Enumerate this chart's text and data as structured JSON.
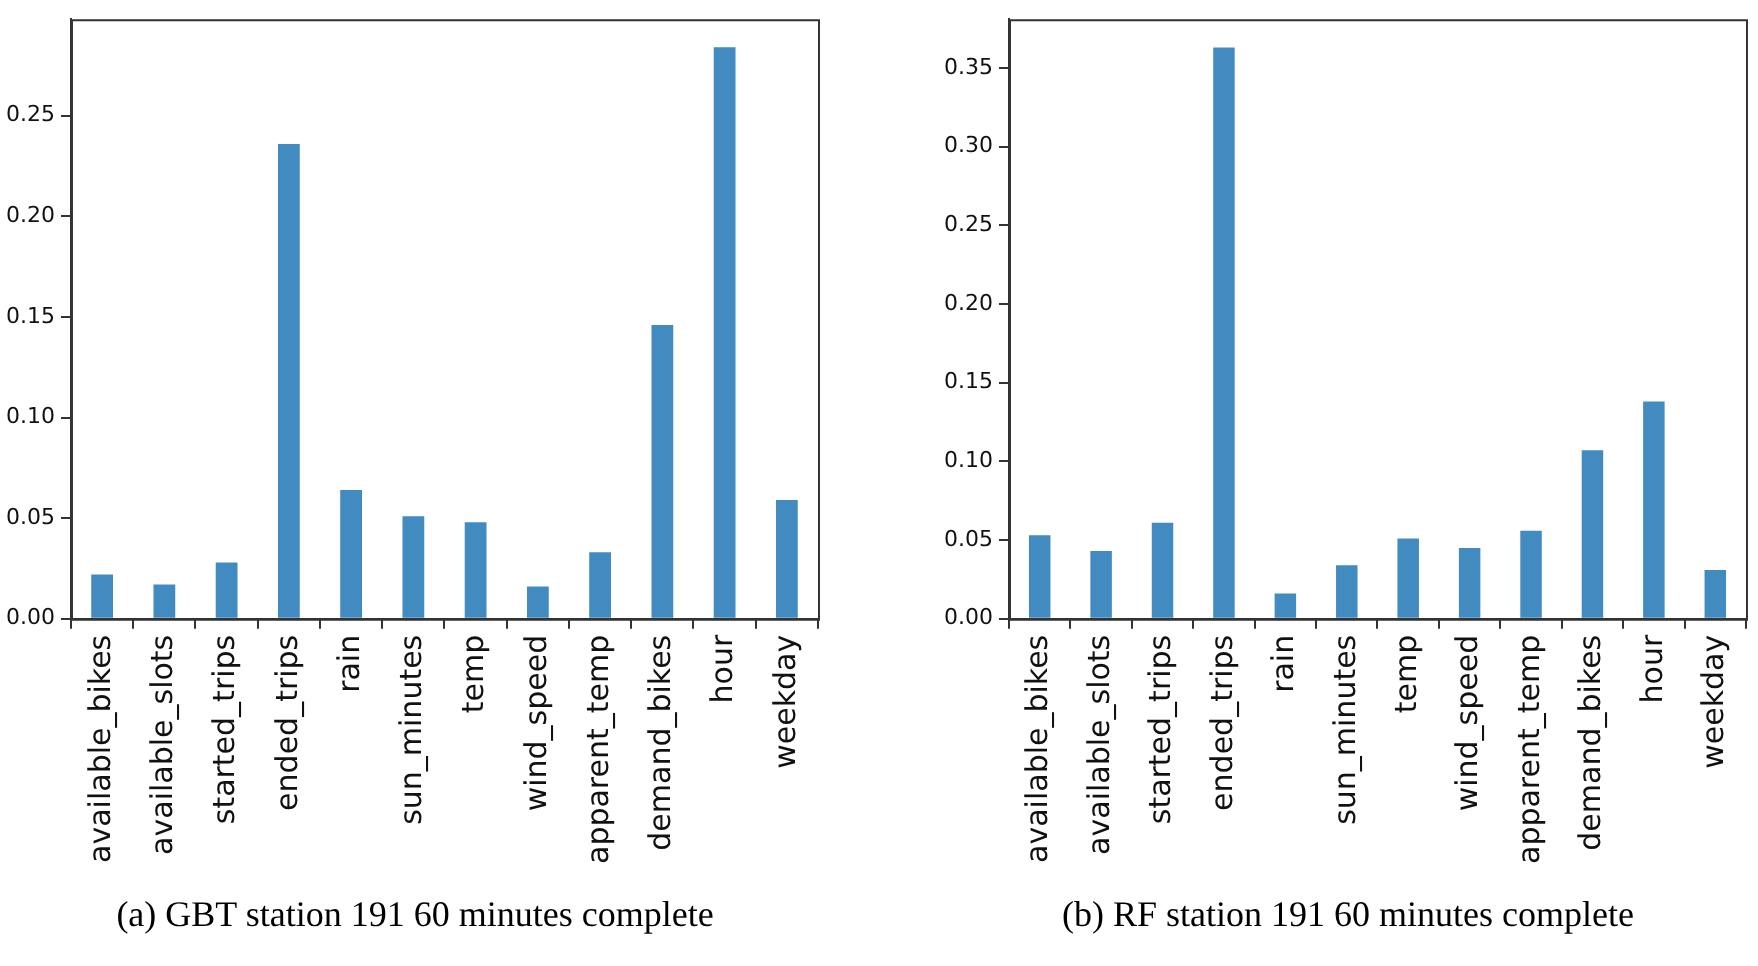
{
  "chart_data": [
    {
      "type": "bar",
      "categories": [
        "available_bikes",
        "available_slots",
        "started_trips",
        "ended_trips",
        "rain",
        "sun_minutes",
        "temp",
        "wind_speed",
        "apparent_temp",
        "demand_bikes",
        "hour",
        "weekday"
      ],
      "values": [
        0.022,
        0.017,
        0.028,
        0.236,
        0.064,
        0.051,
        0.048,
        0.016,
        0.033,
        0.146,
        0.284,
        0.059
      ],
      "color": "#428bc1",
      "ylim": [
        0,
        0.298
      ],
      "yticks": [
        {
          "value": 0,
          "label": "0.00"
        },
        {
          "value": 0.05,
          "label": "0.05"
        },
        {
          "value": 0.1,
          "label": "0.10"
        },
        {
          "value": 0.15,
          "label": "0.15"
        },
        {
          "value": 0.2,
          "label": "0.20"
        },
        {
          "value": 0.25,
          "label": "0.25"
        }
      ],
      "grid": false,
      "legend": false,
      "annotations": [
        "(a) GBT station 191 60 minutes complete"
      ]
    },
    {
      "type": "bar",
      "categories": [
        "available_bikes",
        "available_slots",
        "started_trips",
        "ended_trips",
        "rain",
        "sun_minutes",
        "temp",
        "wind_speed",
        "apparent_temp",
        "demand_bikes",
        "hour",
        "weekday"
      ],
      "values": [
        0.053,
        0.043,
        0.061,
        0.363,
        0.016,
        0.034,
        0.051,
        0.045,
        0.056,
        0.107,
        0.138,
        0.031
      ],
      "color": "#428bc1",
      "ylim": [
        0,
        0.381
      ],
      "yticks": [
        {
          "value": 0,
          "label": "0.00"
        },
        {
          "value": 0.05,
          "label": "0.05"
        },
        {
          "value": 0.1,
          "label": "0.10"
        },
        {
          "value": 0.15,
          "label": "0.15"
        },
        {
          "value": 0.2,
          "label": "0.20"
        },
        {
          "value": 0.25,
          "label": "0.25"
        },
        {
          "value": 0.3,
          "label": "0.30"
        },
        {
          "value": 0.35,
          "label": "0.35"
        }
      ],
      "grid": false,
      "legend": false,
      "annotations": [
        "(b) RF station 191 60 minutes complete"
      ]
    }
  ]
}
